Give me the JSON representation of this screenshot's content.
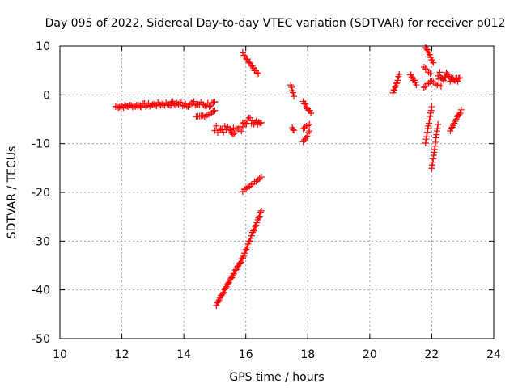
{
  "chart_data": {
    "type": "scatter",
    "title": "Day 095 of 2022, Sidereal Day-to-day VTEC variation (SDTVAR) for receiver p012",
    "xlabel": "GPS time / hours",
    "ylabel": "SDTVAR / TECUs",
    "xlim": [
      10,
      24
    ],
    "ylim": [
      -50,
      10
    ],
    "xticks": [
      "10",
      "12",
      "14",
      "16",
      "18",
      "20",
      "22",
      "24"
    ],
    "yticks": [
      "10",
      "0",
      "-10",
      "-20",
      "-30",
      "-40",
      "-50"
    ],
    "grid": true,
    "marker": "plus",
    "color": "#ff0000",
    "series": [
      {
        "segments": [
          {
            "x0": 11.8,
            "x1": 12.6,
            "y0": -2.4,
            "y1": -2.2,
            "spread": 0.6,
            "n": 20
          },
          {
            "x0": 12.6,
            "x1": 13.6,
            "y0": -2.2,
            "y1": -1.8,
            "spread": 0.8,
            "n": 24
          },
          {
            "x0": 13.6,
            "x1": 15.0,
            "y0": -1.8,
            "y1": -2.0,
            "spread": 1.2,
            "n": 32
          },
          {
            "x0": 14.4,
            "x1": 15.0,
            "y0": -4.8,
            "y1": -3.4,
            "spread": 0.8,
            "n": 12
          },
          {
            "x0": 15.0,
            "x1": 15.6,
            "y0": -7.0,
            "y1": -7.2,
            "spread": 1.4,
            "n": 14
          },
          {
            "x0": 15.5,
            "x1": 15.9,
            "y0": -7.6,
            "y1": -7.0,
            "spread": 1.4,
            "n": 10
          },
          {
            "x0": 15.9,
            "x1": 16.5,
            "y0": -5.2,
            "y1": -5.4,
            "spread": 1.6,
            "n": 16
          },
          {
            "x0": 15.9,
            "x1": 16.4,
            "y0": 8.6,
            "y1": 4.2,
            "spread": 0.5,
            "n": 14
          },
          {
            "x0": 15.9,
            "x1": 16.5,
            "y0": -19.8,
            "y1": -16.8,
            "spread": 0.3,
            "n": 12
          },
          {
            "x0": 15.05,
            "x1": 15.9,
            "y0": -43.0,
            "y1": -33.5,
            "spread": 0.4,
            "n": 30
          },
          {
            "x0": 15.9,
            "x1": 16.5,
            "y0": -33.5,
            "y1": -23.8,
            "spread": 0.4,
            "n": 22
          },
          {
            "x0": 17.45,
            "x1": 17.55,
            "y0": 2.2,
            "y1": -0.2,
            "spread": 0.4,
            "n": 5
          },
          {
            "x0": 17.5,
            "x1": 17.55,
            "y0": -6.8,
            "y1": -7.4,
            "spread": 0.3,
            "n": 3
          },
          {
            "x0": 17.85,
            "x1": 18.1,
            "y0": -1.4,
            "y1": -3.8,
            "spread": 0.6,
            "n": 8
          },
          {
            "x0": 17.85,
            "x1": 18.05,
            "y0": -6.8,
            "y1": -6.0,
            "spread": 0.4,
            "n": 5
          },
          {
            "x0": 17.85,
            "x1": 18.05,
            "y0": -9.6,
            "y1": -7.4,
            "spread": 0.4,
            "n": 6
          },
          {
            "x0": 20.75,
            "x1": 20.95,
            "y0": 0.4,
            "y1": 4.0,
            "spread": 0.6,
            "n": 10
          },
          {
            "x0": 21.3,
            "x1": 21.5,
            "y0": 4.4,
            "y1": 2.2,
            "spread": 0.6,
            "n": 8
          },
          {
            "x0": 21.8,
            "x1": 22.05,
            "y0": 9.6,
            "y1": 6.8,
            "spread": 0.6,
            "n": 10
          },
          {
            "x0": 21.75,
            "x1": 21.95,
            "y0": 5.6,
            "y1": 4.4,
            "spread": 0.4,
            "n": 5
          },
          {
            "x0": 21.75,
            "x1": 22.0,
            "y0": 1.6,
            "y1": 2.8,
            "spread": 0.4,
            "n": 6
          },
          {
            "x0": 21.8,
            "x1": 22.0,
            "y0": -9.8,
            "y1": -2.4,
            "spread": 0.4,
            "n": 12
          },
          {
            "x0": 22.0,
            "x1": 22.2,
            "y0": -15.2,
            "y1": -6.2,
            "spread": 0.4,
            "n": 14
          },
          {
            "x0": 22.2,
            "x1": 22.9,
            "y0": 4.0,
            "y1": 3.2,
            "spread": 1.8,
            "n": 24
          },
          {
            "x0": 22.05,
            "x1": 22.3,
            "y0": 2.6,
            "y1": 1.8,
            "spread": 0.4,
            "n": 5
          },
          {
            "x0": 22.6,
            "x1": 22.95,
            "y0": -7.2,
            "y1": -3.2,
            "spread": 0.4,
            "n": 12
          }
        ]
      }
    ]
  }
}
